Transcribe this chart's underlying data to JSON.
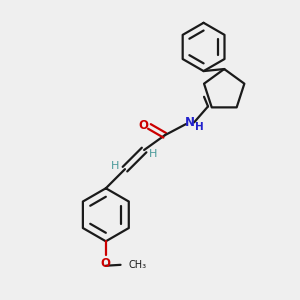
{
  "background_color": "#efefef",
  "bond_color": "#1a1a1a",
  "oxygen_color": "#cc0000",
  "nitrogen_color": "#2222cc",
  "vinyl_h_color": "#4a9a9a",
  "figsize": [
    3.0,
    3.0
  ],
  "dpi": 100,
  "xlim": [
    0,
    10
  ],
  "ylim": [
    0,
    10
  ],
  "bond_lw": 1.6,
  "ring_lw": 1.6
}
